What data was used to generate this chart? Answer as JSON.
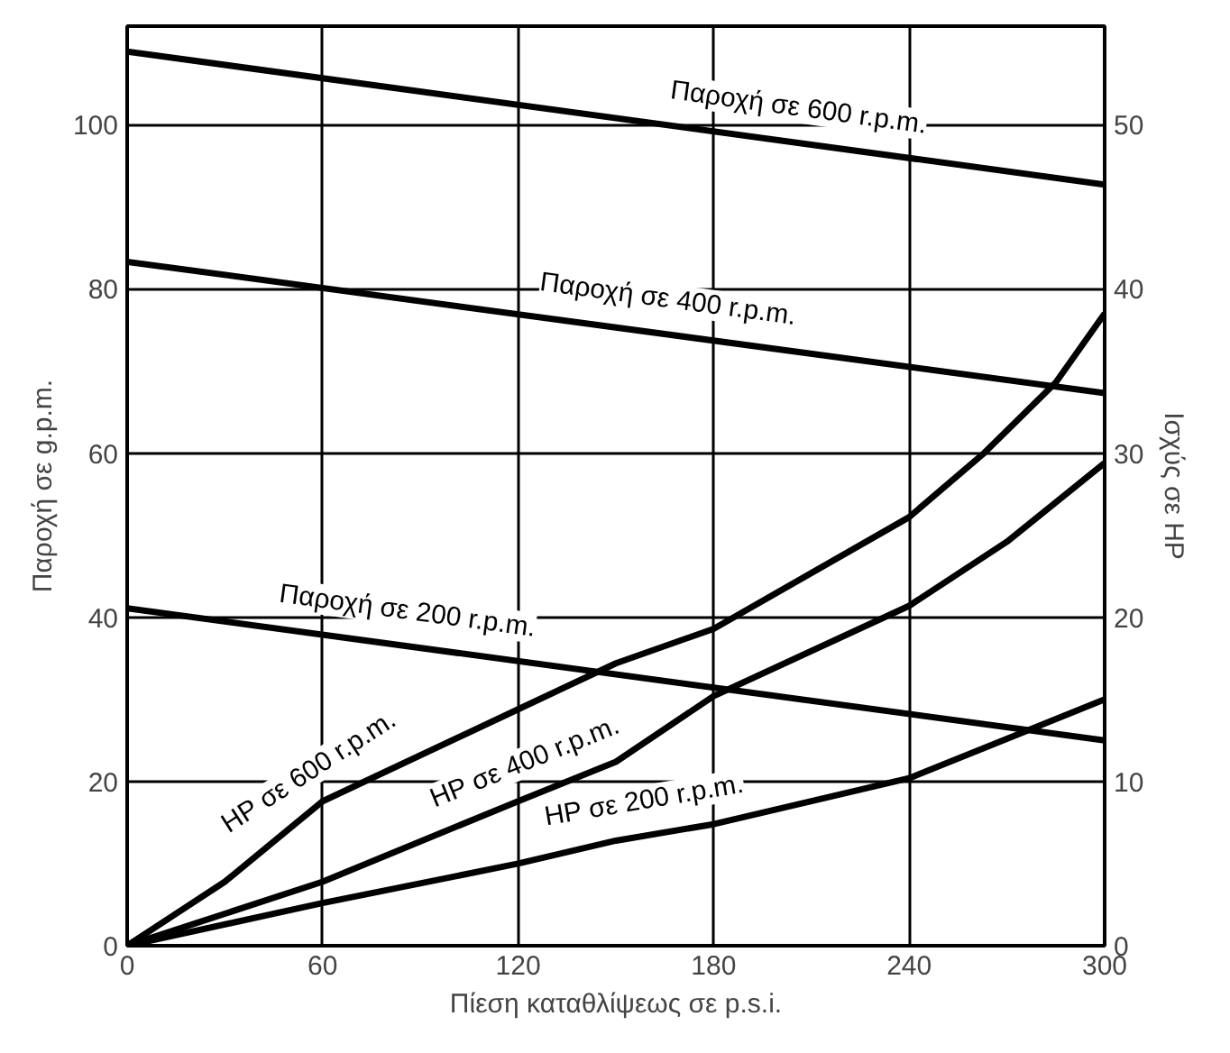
{
  "chart_data": {
    "type": "line",
    "xlabel": "Πίεση καταθλίψεως σε p.s.i.",
    "ylabel": "Παροχή σε g.p.m.",
    "y2label": "Ισχύς σε HP",
    "xlim": [
      0,
      300
    ],
    "xticks": [
      0,
      60,
      120,
      180,
      240,
      300
    ],
    "ylim": [
      0,
      112
    ],
    "yticks": [
      0,
      20,
      40,
      60,
      80,
      100
    ],
    "y2lim": [
      0,
      56
    ],
    "y2ticks": [
      0,
      10,
      20,
      30,
      40,
      50
    ],
    "grid": true,
    "marker": "none",
    "line_style": "solid",
    "series": [
      {
        "name": "Παροχή σε 600 r.p.m.",
        "color": "#000000",
        "x": [
          0,
          300
        ],
        "values": [
          108.9,
          92.7
        ]
      },
      {
        "name": "Παροχή σε 400 r.p.m.",
        "color": "#000000",
        "x": [
          0,
          300
        ],
        "values": [
          83.3,
          67.3
        ]
      },
      {
        "name": "Παροχή σε 200 r.p.m.",
        "color": "#000000",
        "x": [
          0,
          300
        ],
        "values": [
          41.1,
          25.0
        ]
      },
      {
        "name": "HP σε 600 r.p.m.",
        "color": "#000000",
        "axis": "y2",
        "x": [
          0,
          30,
          60,
          120,
          150,
          180,
          240,
          263,
          285,
          300
        ],
        "values": [
          0,
          3.9,
          8.8,
          14.4,
          17.2,
          19.3,
          26.1,
          30,
          34.3,
          38.5
        ]
      },
      {
        "name": "HP σε 400 r.p.m.",
        "color": "#000000",
        "axis": "y2",
        "x": [
          0,
          60,
          120,
          150,
          180,
          240,
          270,
          300
        ],
        "values": [
          0,
          3.9,
          8.8,
          11.2,
          15.2,
          20.7,
          24.6,
          29.4
        ]
      },
      {
        "name": "HP σε 200 r.p.m.",
        "color": "#000000",
        "axis": "y2",
        "x": [
          0,
          60,
          120,
          150,
          180,
          240,
          270,
          300
        ],
        "values": [
          0,
          2.6,
          5.0,
          6.4,
          7.4,
          10.2,
          12.6,
          15.0
        ]
      }
    ]
  }
}
